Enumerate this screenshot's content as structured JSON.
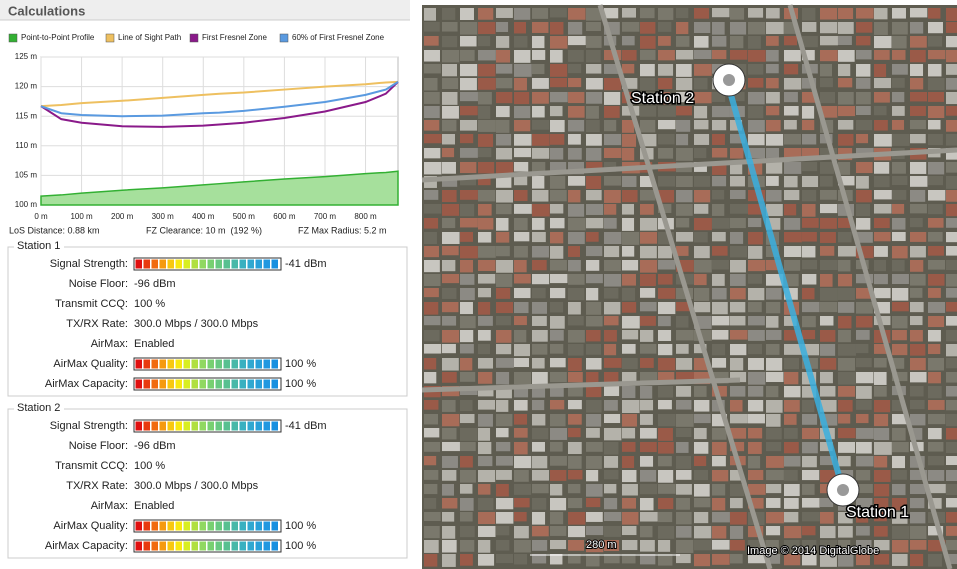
{
  "header": {
    "title": "Calculations"
  },
  "chart_data": {
    "type": "line",
    "x": [
      0,
      50,
      100,
      200,
      300,
      400,
      440,
      500,
      600,
      700,
      800,
      850,
      880
    ],
    "series": [
      {
        "name": "Point-to-Point Profile",
        "color": "#33b033",
        "fill": "#a6e09c",
        "values": [
          101.5,
          101.7,
          102,
          102.5,
          102.9,
          103.4,
          103.6,
          103.9,
          104.4,
          104.8,
          105.3,
          105.5,
          105.7
        ]
      },
      {
        "name": "Line of Sight Path",
        "color": "#eec060",
        "values": [
          116.7,
          116.9,
          117.2,
          117.6,
          118.1,
          118.6,
          118.8,
          119,
          119.5,
          120,
          120.4,
          120.7,
          120.8
        ]
      },
      {
        "name": "First Fresnel Zone",
        "color": "#8a1a8a",
        "values": [
          116.7,
          114.5,
          113.9,
          113.3,
          113.2,
          113.4,
          113.6,
          113.9,
          114.7,
          115.8,
          117.4,
          118.8,
          120.8
        ]
      },
      {
        "name": "60% of First Fresnel Zone",
        "color": "#5a9ae0",
        "values": [
          116.7,
          115.5,
          115.2,
          115,
          115.1,
          115.5,
          115.6,
          115.9,
          116.6,
          117.4,
          118.6,
          119.5,
          120.8
        ]
      }
    ],
    "xlim": [
      0,
      880
    ],
    "ylim": [
      100,
      125
    ],
    "xticks": [
      {
        "value": 0,
        "label": "0 m"
      },
      {
        "value": 100,
        "label": "100 m"
      },
      {
        "value": 200,
        "label": "200 m"
      },
      {
        "value": 300,
        "label": "300 m"
      },
      {
        "value": 400,
        "label": "400 m"
      },
      {
        "value": 500,
        "label": "500 m"
      },
      {
        "value": 600,
        "label": "600 m"
      },
      {
        "value": 700,
        "label": "700 m"
      },
      {
        "value": 800,
        "label": "800 m"
      }
    ],
    "yticks": [
      {
        "value": 100,
        "label": "100 m"
      },
      {
        "value": 105,
        "label": "105 m"
      },
      {
        "value": 110,
        "label": "110 m"
      },
      {
        "value": 115,
        "label": "115 m"
      },
      {
        "value": 120,
        "label": "120 m"
      },
      {
        "value": 125,
        "label": "125 m"
      }
    ],
    "grid": true
  },
  "stats": [
    "LoS Distance: 0.88 km",
    "FZ Clearance: 10 m  (192 %)",
    "FZ Max Radius: 5.2 m"
  ],
  "stations": [
    {
      "title": "Station 1",
      "rows": [
        {
          "label": "Signal Strength:",
          "value": "-41 dBm",
          "meter": true
        },
        {
          "label": "Noise Floor:",
          "value": "-96 dBm"
        },
        {
          "label": "Transmit CCQ:",
          "value": "100 %"
        },
        {
          "label": "TX/RX Rate:",
          "value": "300.0 Mbps / 300.0 Mbps"
        },
        {
          "label": "AirMax:",
          "value": "Enabled"
        },
        {
          "label": "AirMax Quality:",
          "value": "100 %",
          "meter": true
        },
        {
          "label": "AirMax Capacity:",
          "value": "100 %",
          "meter": true
        }
      ]
    },
    {
      "title": "Station 2",
      "rows": [
        {
          "label": "Signal Strength:",
          "value": "-41 dBm",
          "meter": true
        },
        {
          "label": "Noise Floor:",
          "value": "-96 dBm"
        },
        {
          "label": "Transmit CCQ:",
          "value": "100 %"
        },
        {
          "label": "TX/RX Rate:",
          "value": "300.0 Mbps / 300.0 Mbps"
        },
        {
          "label": "AirMax:",
          "value": "Enabled"
        },
        {
          "label": "AirMax Quality:",
          "value": "100 %",
          "meter": true
        },
        {
          "label": "AirMax Capacity:",
          "value": "100 %",
          "meter": true
        }
      ]
    }
  ],
  "map": {
    "station_2": "Station 2",
    "station_1": "Station 1",
    "scale": "280 m",
    "credit": "Image © 2014 DigitalGlobe"
  }
}
